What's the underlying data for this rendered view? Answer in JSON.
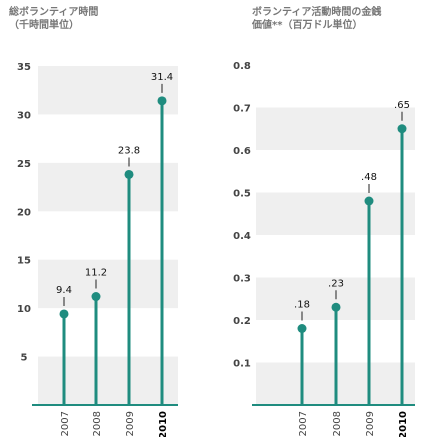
{
  "accent_color": "#1f8c7f",
  "band_color": "#efefef",
  "charts": [
    {
      "title_line1": "総ボランティア時間",
      "title_line2": "（千時間単位）"
    },
    {
      "title_line1": "ボランティア活動時間の金銭",
      "title_line2": "価値**（百万ドル単位）"
    }
  ],
  "chart_data": [
    {
      "type": "line",
      "categories": [
        "2007",
        "2008",
        "2009",
        "2010"
      ],
      "values": [
        9.4,
        11.2,
        23.8,
        31.4
      ],
      "value_labels": [
        "9.4",
        "11.2",
        "23.8",
        "31.4"
      ],
      "yticks": [
        5,
        10,
        15,
        20,
        25,
        30,
        35
      ],
      "ytick_labels": [
        "5",
        "10",
        "15",
        "20",
        "25",
        "30",
        "35"
      ],
      "ylim": [
        0,
        35
      ],
      "bold_category": "2010",
      "title": "総ボランティア時間 （千時間単位）"
    },
    {
      "type": "line",
      "categories": [
        "2007",
        "2008",
        "2009",
        "2010"
      ],
      "values": [
        0.18,
        0.23,
        0.48,
        0.65
      ],
      "value_labels": [
        ".18",
        ".23",
        ".48",
        ".65"
      ],
      "yticks": [
        0.1,
        0.2,
        0.3,
        0.4,
        0.5,
        0.6,
        0.7,
        0.8
      ],
      "ytick_labels": [
        "0.1",
        "0.2",
        "0.3",
        "0.4",
        "0.5",
        "0.6",
        "0.7",
        "0.8"
      ],
      "ylim": [
        0,
        0.8
      ],
      "bold_category": "2010",
      "title": "ボランティア活動時間の金銭 価値**（百万ドル単位）"
    }
  ]
}
